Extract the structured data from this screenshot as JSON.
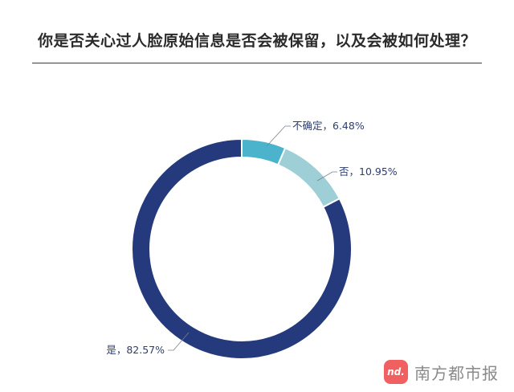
{
  "title": "你是否关心过人脸原始信息是否会被保留，以及会被如何处理？",
  "brand": {
    "logo_text": "nd.",
    "name": "南方都市报",
    "logo_color": "#f06060"
  },
  "chart_data": {
    "type": "pie",
    "title": "你是否关心过人脸原始信息是否会被保留，以及会被如何处理？",
    "series": [
      {
        "label": "不确定",
        "value": 6.48,
        "display": "不确定，6.48%",
        "color": "#4bb3cb"
      },
      {
        "label": "否",
        "value": 10.95,
        "display": "否，10.95%",
        "color": "#9ecfd6"
      },
      {
        "label": "是",
        "value": 82.57,
        "display": "是，82.57%",
        "color": "#243a7c"
      }
    ],
    "donut": true,
    "start": "top",
    "direction": "clockwise",
    "legend": "none"
  }
}
